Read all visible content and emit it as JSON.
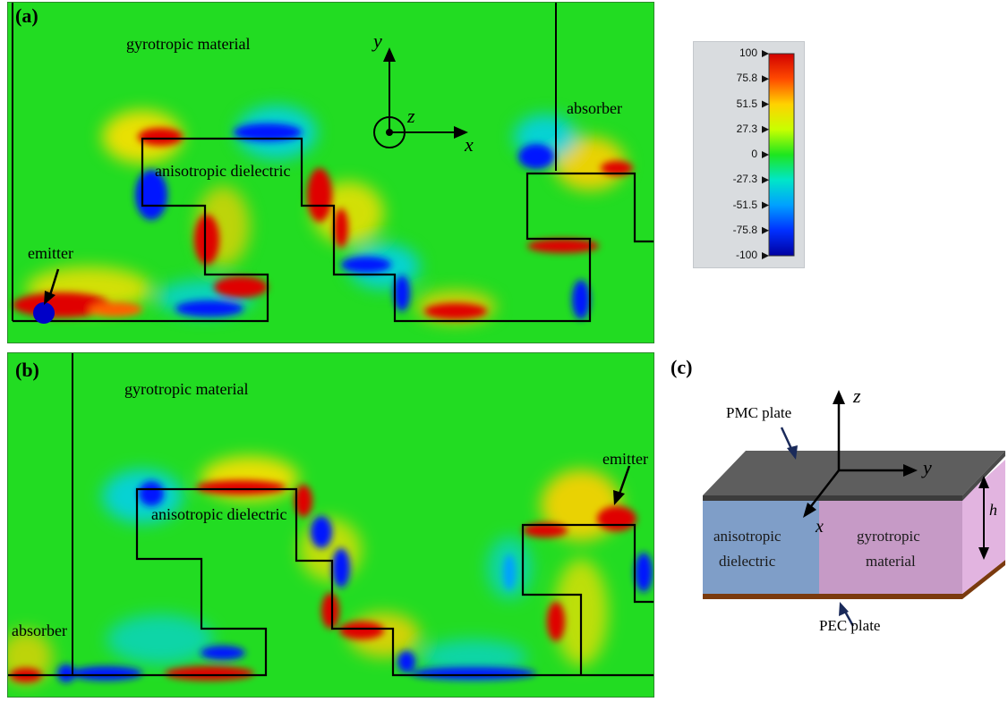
{
  "panel_a": {
    "label": "(a)",
    "gyrotropic": "gyrotropic material",
    "anisotropic": "anisotropic dielectric",
    "absorber": "absorber",
    "emitter": "emitter",
    "axis_y": "y",
    "axis_z": "z",
    "axis_x": "x"
  },
  "panel_b": {
    "label": "(b)",
    "gyrotropic": "gyrotropic material",
    "anisotropic": "anisotropic dielectric",
    "absorber": "absorber",
    "emitter": "emitter"
  },
  "colorbar": {
    "ticks": [
      "100",
      "75.8",
      "51.5",
      "27.3",
      "0",
      "-27.3",
      "-51.5",
      "-75.8",
      "-100"
    ],
    "colors": [
      "#d10000",
      "#ff4a00",
      "#ffd200",
      "#c8ff00",
      "#1ee61e",
      "#00e6c8",
      "#00a0ff",
      "#0030ff",
      "#0000a0"
    ]
  },
  "panel_c": {
    "label": "(c)",
    "pmc": "PMC plate",
    "pec": "PEC plate",
    "aniso_line1": "anisotropic",
    "aniso_line2": "dielectric",
    "gyro_line1": "gyrotropic",
    "gyro_line2": "material",
    "axis_z": "z",
    "axis_y": "y",
    "axis_x": "x",
    "height": "h"
  }
}
